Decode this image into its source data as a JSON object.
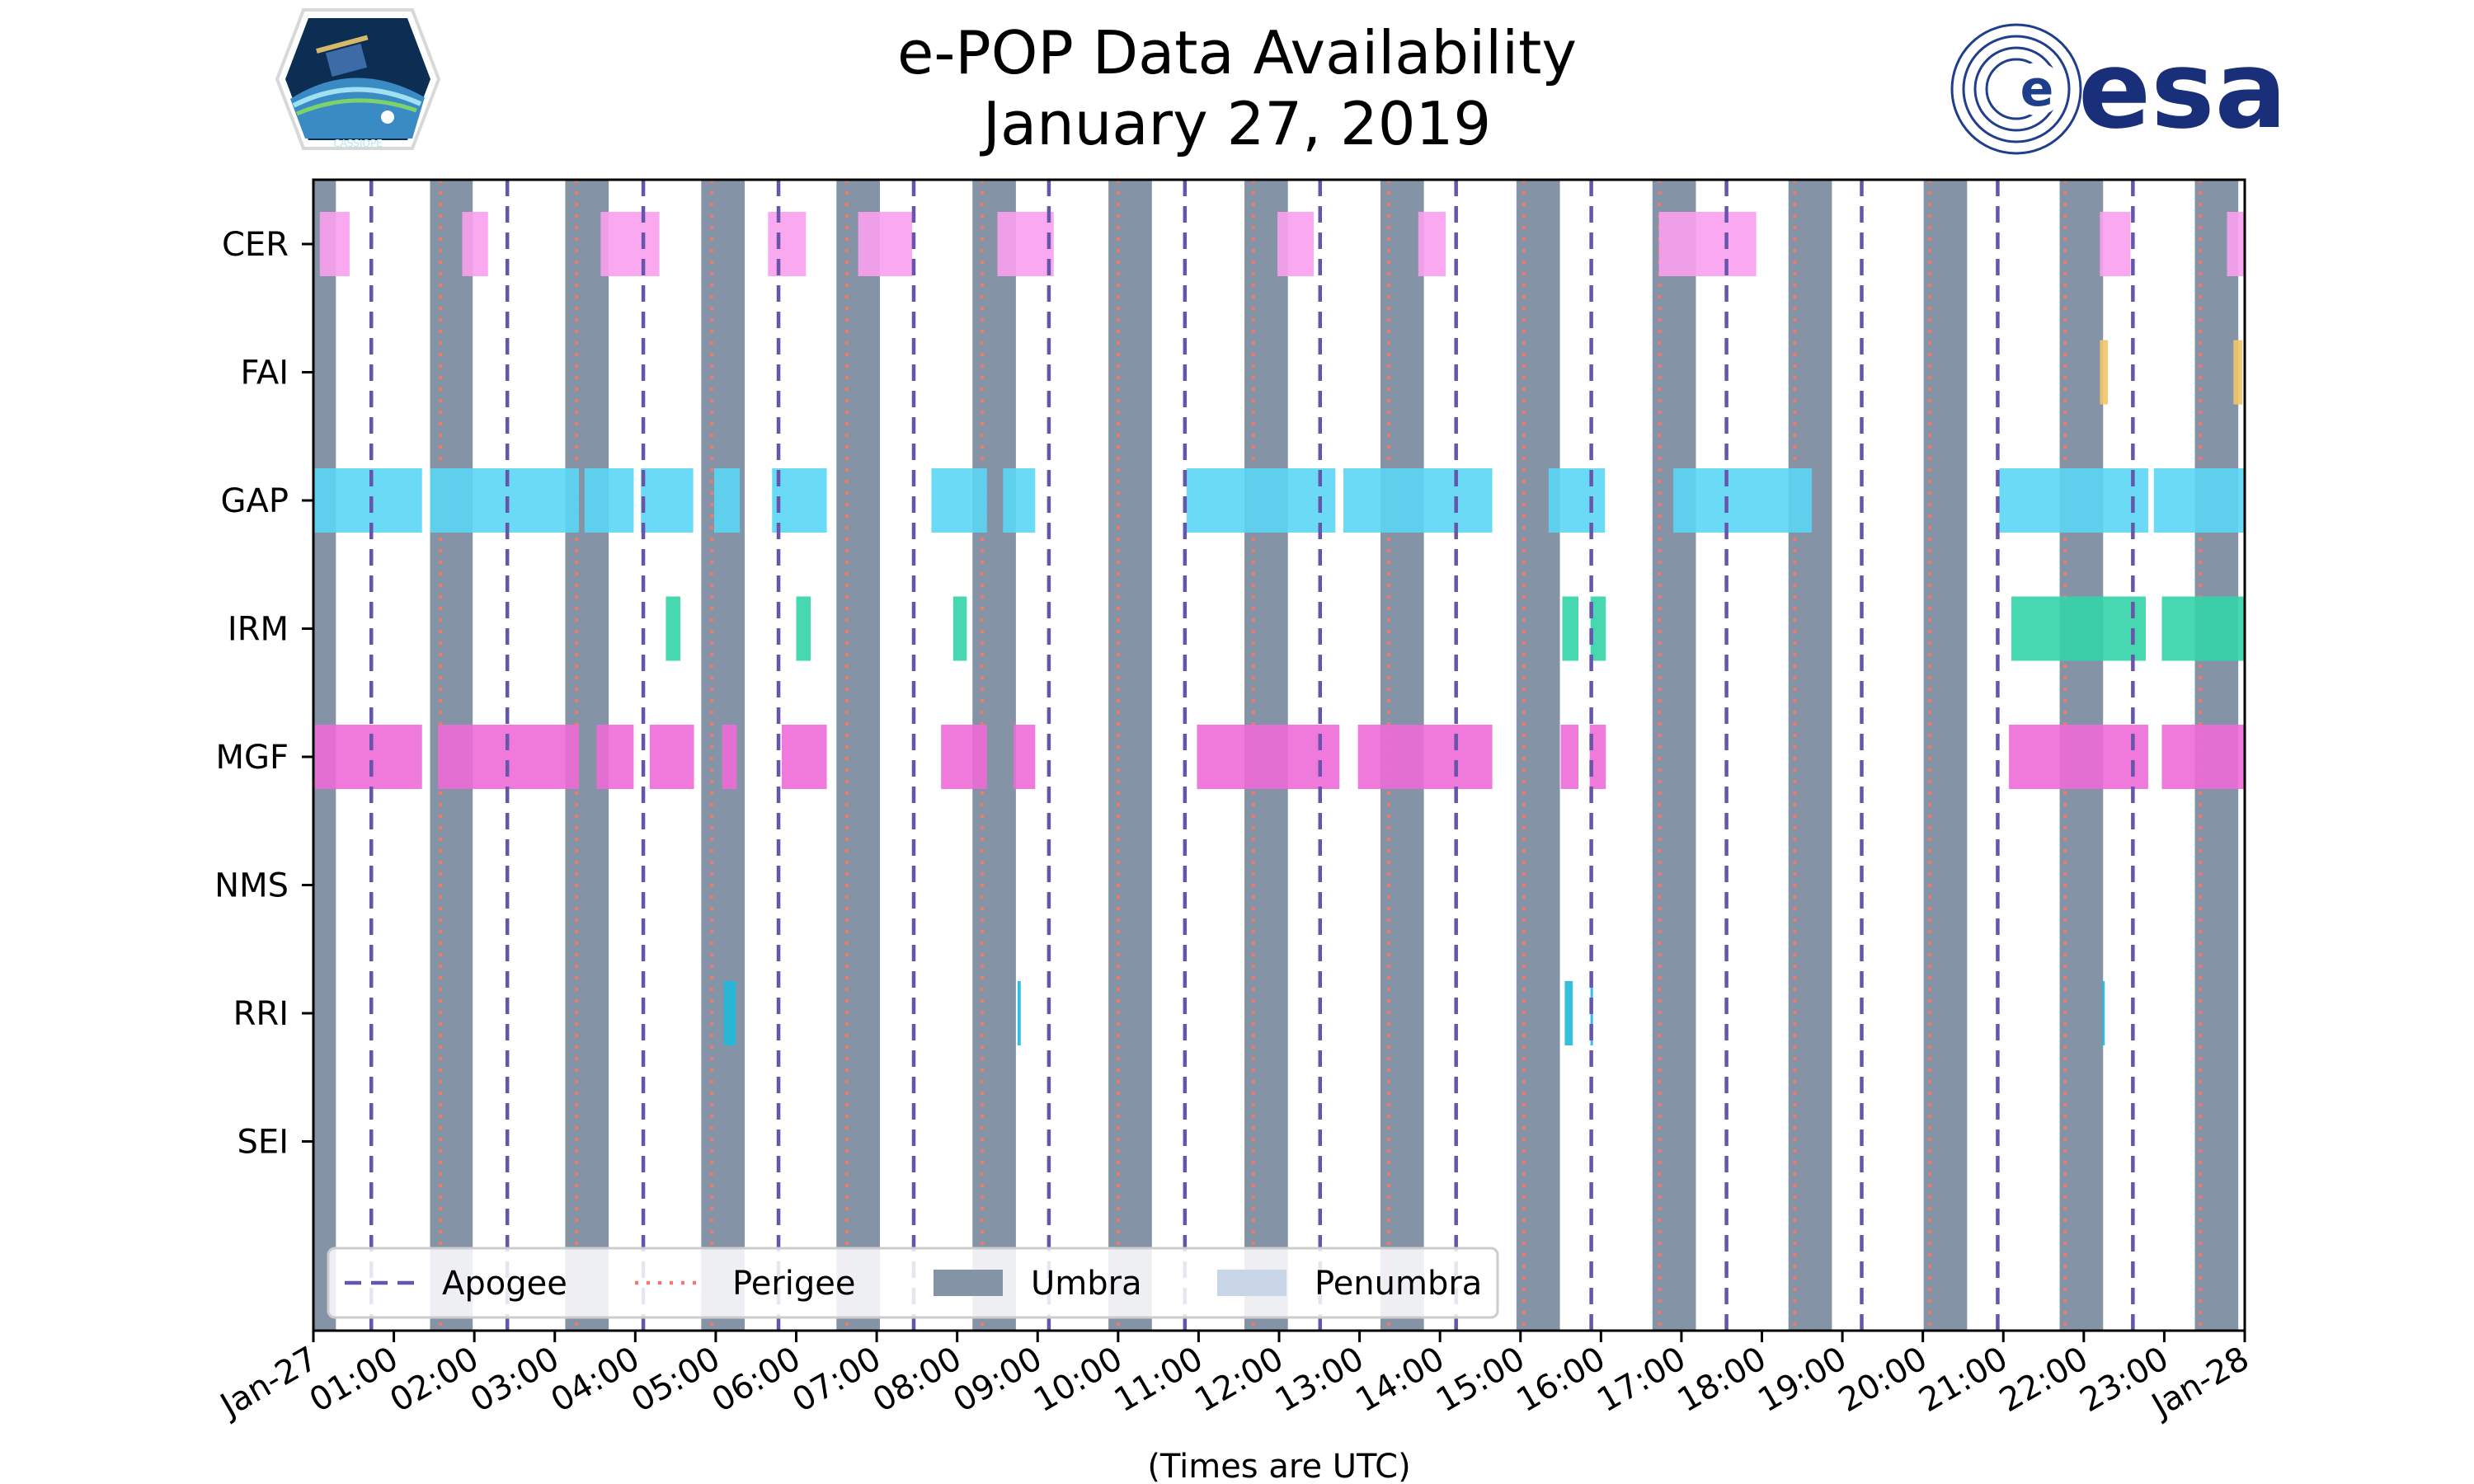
{
  "chart_data": {
    "type": "bar",
    "orientation": "horizontal-timeline",
    "title": "e-POP Data Availability",
    "subtitle": "January 27, 2019",
    "xlabel": "(Times are UTC)",
    "ylabel": "",
    "x_range_hours": [
      0,
      24
    ],
    "x_tick_labels": [
      "Jan-27",
      "01:00",
      "02:00",
      "03:00",
      "04:00",
      "05:00",
      "06:00",
      "07:00",
      "08:00",
      "09:00",
      "10:00",
      "11:00",
      "12:00",
      "13:00",
      "14:00",
      "15:00",
      "16:00",
      "17:00",
      "18:00",
      "19:00",
      "20:00",
      "21:00",
      "22:00",
      "23:00",
      "Jan-28"
    ],
    "categories": [
      "CER",
      "FAI",
      "GAP",
      "IRM",
      "MGF",
      "NMS",
      "RRI",
      "SEI"
    ],
    "grid": false,
    "legend_position": "bottom-left",
    "legend": [
      {
        "key": "apogee",
        "label": "Apogee",
        "style": "dashed",
        "color": "#6655aa"
      },
      {
        "key": "perigee",
        "label": "Perigee",
        "style": "dotted",
        "color": "#f07a6a"
      },
      {
        "key": "umbra",
        "label": "Umbra",
        "style": "fill",
        "color": "#8494a6"
      },
      {
        "key": "penumbra",
        "label": "Penumbra",
        "style": "fill",
        "color": "#c8d6e8"
      }
    ],
    "umbra_intervals": [
      [
        0.0,
        0.28
      ],
      [
        1.45,
        1.98
      ],
      [
        3.13,
        3.67
      ],
      [
        4.82,
        5.36
      ],
      [
        6.5,
        7.04
      ],
      [
        8.19,
        8.73
      ],
      [
        9.88,
        10.42
      ],
      [
        11.57,
        12.11
      ],
      [
        13.26,
        13.8
      ],
      [
        14.95,
        15.49
      ],
      [
        16.64,
        17.18
      ],
      [
        18.33,
        18.87
      ],
      [
        20.01,
        20.55
      ],
      [
        21.7,
        22.24
      ],
      [
        23.38,
        23.92
      ]
    ],
    "apogee_hours": [
      0.72,
      2.41,
      4.1,
      5.78,
      7.46,
      9.14,
      10.83,
      12.51,
      14.2,
      15.88,
      17.56,
      19.24,
      20.93,
      22.61
    ],
    "perigee_hours": [
      1.58,
      3.27,
      4.95,
      6.63,
      8.31,
      10.0,
      11.68,
      13.36,
      15.04,
      16.73,
      18.41,
      20.09,
      21.77,
      23.45
    ],
    "series": [
      {
        "name": "CER",
        "color": "#f9a0ef",
        "intervals": [
          [
            0.08,
            0.45
          ],
          [
            1.85,
            2.17
          ],
          [
            3.57,
            4.3
          ],
          [
            5.65,
            6.12
          ],
          [
            6.77,
            7.44
          ],
          [
            8.5,
            9.2
          ],
          [
            11.98,
            12.43
          ],
          [
            13.73,
            14.07
          ],
          [
            16.72,
            17.93
          ],
          [
            22.2,
            22.58
          ],
          [
            23.78,
            24.0
          ]
        ]
      },
      {
        "name": "FAI",
        "color": "#f2c46a",
        "intervals": [
          [
            22.2,
            22.3
          ],
          [
            23.86,
            23.97
          ]
        ]
      },
      {
        "name": "GAP",
        "color": "#5ad6f6",
        "intervals": [
          [
            0.0,
            1.35
          ],
          [
            1.45,
            3.3
          ],
          [
            3.37,
            3.98
          ],
          [
            4.07,
            4.72
          ],
          [
            4.98,
            5.3
          ],
          [
            5.7,
            6.38
          ],
          [
            7.68,
            8.37
          ],
          [
            8.57,
            8.97
          ],
          [
            10.85,
            12.7
          ],
          [
            12.8,
            14.65
          ],
          [
            15.35,
            16.05
          ],
          [
            16.9,
            18.62
          ],
          [
            20.95,
            22.8
          ],
          [
            22.87,
            24.0
          ]
        ]
      },
      {
        "name": "IRM",
        "color": "#33d4a8",
        "intervals": [
          [
            4.38,
            4.56
          ],
          [
            6.0,
            6.18
          ],
          [
            7.95,
            8.12
          ],
          [
            15.52,
            15.72
          ],
          [
            15.87,
            16.06
          ],
          [
            21.1,
            22.77
          ],
          [
            22.97,
            24.0
          ]
        ]
      },
      {
        "name": "MGF",
        "color": "#ee6ad8",
        "intervals": [
          [
            0.0,
            1.35
          ],
          [
            1.55,
            3.3
          ],
          [
            3.52,
            3.98
          ],
          [
            4.18,
            4.73
          ],
          [
            5.08,
            5.26
          ],
          [
            5.82,
            6.38
          ],
          [
            7.8,
            8.37
          ],
          [
            8.7,
            8.97
          ],
          [
            10.98,
            12.75
          ],
          [
            12.98,
            14.65
          ],
          [
            15.5,
            15.72
          ],
          [
            15.86,
            16.06
          ],
          [
            21.07,
            22.8
          ],
          [
            22.97,
            24.0
          ]
        ]
      },
      {
        "name": "NMS",
        "color": "#888888",
        "intervals": []
      },
      {
        "name": "RRI",
        "color": "#1fb8dc",
        "intervals": [
          [
            5.1,
            5.25
          ],
          [
            8.75,
            8.79
          ],
          [
            15.55,
            15.65
          ],
          [
            15.87,
            15.9
          ],
          [
            22.23,
            22.26
          ]
        ]
      },
      {
        "name": "SEI",
        "color": "#888888",
        "intervals": []
      }
    ]
  },
  "logos": {
    "cassiope": "CASSIOPE",
    "esa": "esa"
  }
}
